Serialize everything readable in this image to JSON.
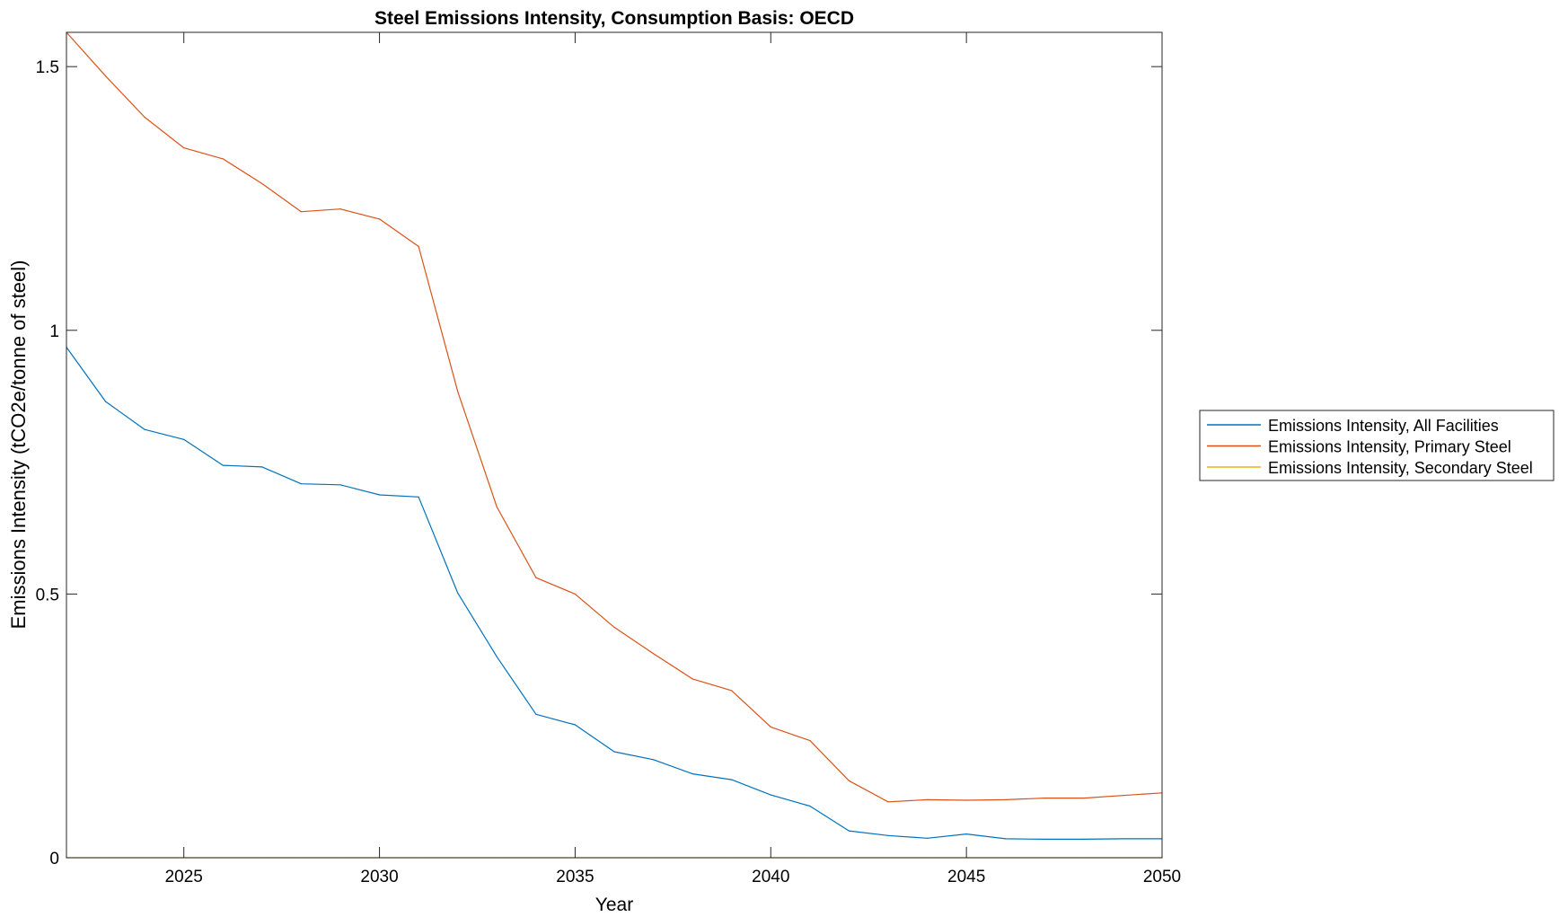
{
  "chart_data": {
    "type": "line",
    "title": "Steel Emissions Intensity, Consumption Basis: OECD",
    "xlabel": "Year",
    "ylabel": "Emissions Intensity (tCO2e/tonne of steel)",
    "xlim": [
      2022,
      2050
    ],
    "ylim": [
      0,
      1.565
    ],
    "xticks": [
      2025,
      2030,
      2035,
      2040,
      2045,
      2050
    ],
    "xtick_labels": [
      "2025",
      "2030",
      "2035",
      "2040",
      "2045",
      "2050"
    ],
    "yticks": [
      0,
      0.5,
      1,
      1.5
    ],
    "ytick_labels": [
      "0",
      "0.5",
      "1",
      "1.5"
    ],
    "grid": false,
    "legend_position": "outside-right",
    "x": [
      2022,
      2023,
      2024,
      2025,
      2026,
      2027,
      2028,
      2029,
      2030,
      2031,
      2032,
      2033,
      2034,
      2035,
      2036,
      2037,
      2038,
      2039,
      2040,
      2041,
      2042,
      2043,
      2044,
      2045,
      2046,
      2047,
      2048,
      2049,
      2050
    ],
    "series": [
      {
        "name": "Emissions Intensity, All Facilities",
        "color": "#0072BD",
        "values": [
          0.968,
          0.865,
          0.812,
          0.793,
          0.744,
          0.741,
          0.709,
          0.707,
          0.688,
          0.684,
          0.502,
          0.381,
          0.272,
          0.252,
          0.201,
          0.186,
          0.159,
          0.148,
          0.119,
          0.098,
          0.051,
          0.042,
          0.037,
          0.045,
          0.036,
          0.035,
          0.035,
          0.036,
          0.036
        ]
      },
      {
        "name": "Emissions Intensity, Primary Steel",
        "color": "#D95319",
        "values": [
          1.565,
          1.482,
          1.404,
          1.346,
          1.325,
          1.278,
          1.225,
          1.23,
          1.211,
          1.159,
          0.884,
          0.665,
          0.531,
          0.5,
          0.437,
          0.387,
          0.339,
          0.317,
          0.248,
          0.222,
          0.146,
          0.106,
          0.11,
          0.109,
          0.11,
          0.113,
          0.113,
          0.118,
          0.123
        ]
      },
      {
        "name": "Emissions Intensity, Secondary Steel",
        "color": "#EDB120",
        "values": [
          0,
          0,
          0,
          0,
          0,
          0,
          0,
          0,
          0,
          0,
          0,
          0,
          0,
          0,
          0,
          0,
          0,
          0,
          0,
          0,
          0,
          0,
          0,
          0,
          0,
          0,
          0,
          0,
          0
        ]
      }
    ]
  }
}
